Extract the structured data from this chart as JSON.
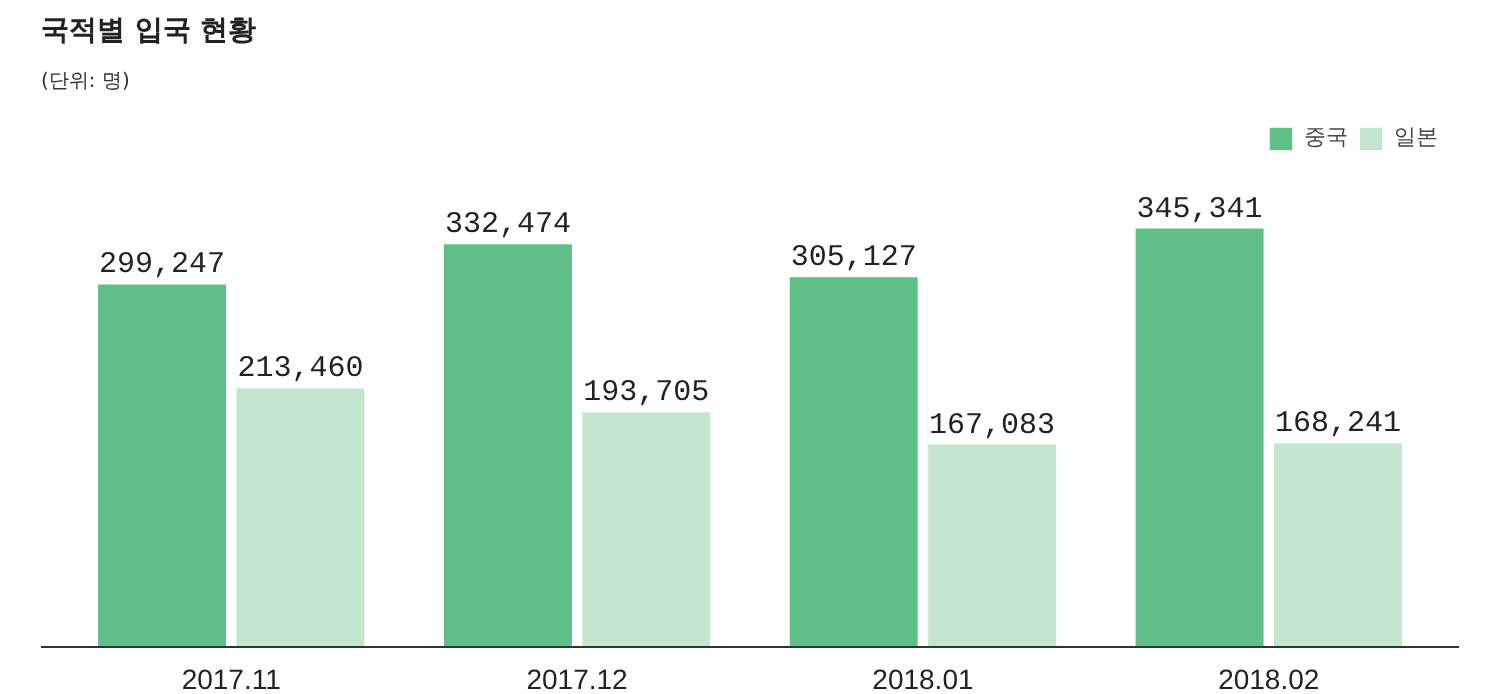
{
  "chart_data": {
    "type": "bar",
    "title": "국적별 입국 현황",
    "subtitle": "(단위: 명)",
    "categories": [
      "2017.11",
      "2017.12",
      "2018.01",
      "2018.02"
    ],
    "series": [
      {
        "name": "중국",
        "color": "#5fbf87",
        "values": [
          299247,
          332474,
          305127,
          345341
        ],
        "value_labels": [
          "299,247",
          "332,474",
          "305,127",
          "345,341"
        ]
      },
      {
        "name": "일본",
        "color": "#c4e6cf",
        "values": [
          213460,
          193705,
          167083,
          168241
        ],
        "value_labels": [
          "213,460",
          "193,705",
          "167,083",
          "168,241"
        ]
      }
    ],
    "legend": "top right",
    "grid": false
  }
}
